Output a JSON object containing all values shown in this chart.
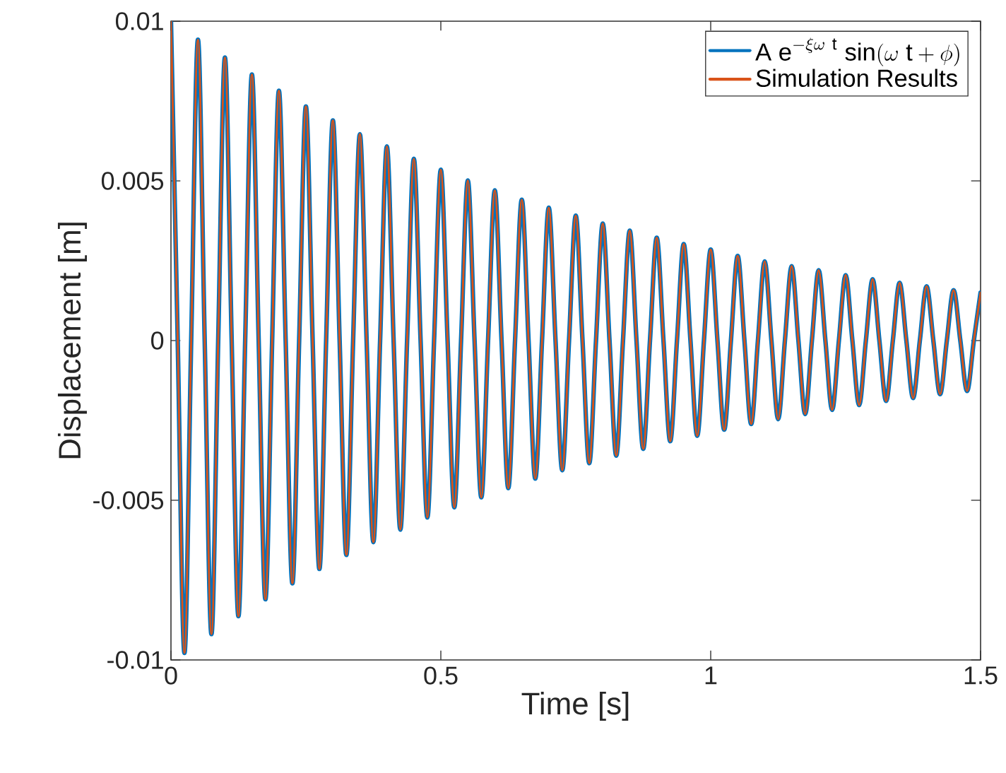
{
  "chart_data": {
    "type": "line",
    "xlabel": "Time [s]",
    "ylabel": "Displacement [m]",
    "xlim": [
      0,
      1.5
    ],
    "ylim": [
      -0.01,
      0.01
    ],
    "xticks": [
      0,
      0.5,
      1,
      1.5
    ],
    "yticks": [
      -0.01,
      -0.005,
      0,
      0.005,
      0.01
    ],
    "legend": "top right",
    "grid": false,
    "x": [
      0,
      0.0125,
      0.025,
      0.0375,
      0.05,
      0.0625,
      0.075,
      0.0875,
      0.1,
      0.1125,
      0.125,
      0.1375,
      0.15,
      0.1625,
      0.175,
      0.1875,
      0.2,
      0.2125,
      0.225,
      0.2375,
      0.25,
      0.2625,
      0.275,
      0.2875,
      0.3,
      0.3125,
      0.325,
      0.3375,
      0.35,
      0.3625,
      0.375,
      0.3875,
      0.4,
      0.4125,
      0.425,
      0.4375,
      0.45,
      0.4625,
      0.475,
      0.4875,
      0.5,
      0.5125,
      0.525,
      0.5375,
      0.55,
      0.5625,
      0.575,
      0.5875,
      0.6,
      0.6125,
      0.625,
      0.6375,
      0.65,
      0.6625,
      0.675,
      0.6875,
      0.7,
      0.7125,
      0.725,
      0.7375,
      0.75,
      0.7625,
      0.775,
      0.7875,
      0.8,
      0.8125,
      0.825,
      0.8375,
      0.85,
      0.8625,
      0.875,
      0.8875,
      0.9,
      0.9125,
      0.925,
      0.9375,
      0.95,
      0.9625,
      0.975,
      0.9875,
      1,
      1.0125,
      1.025,
      1.0375,
      1.05,
      1.0625,
      1.075,
      1.0875,
      1.1,
      1.1125,
      1.125,
      1.1375,
      1.15,
      1.1625,
      1.175,
      1.1875,
      1.2,
      1.2125,
      1.225,
      1.2375,
      1.25,
      1.2625,
      1.275,
      1.2875,
      1.3,
      1.3125,
      1.325,
      1.3375,
      1.35,
      1.3625,
      1.375,
      1.3875,
      1.4,
      1.4125,
      1.425,
      1.4375,
      1.45,
      1.4625,
      1.475,
      1.4875,
      1.5
    ],
    "series": [
      {
        "name": "\\mathrm{A\\ e}^{-\\xi\\omega\\ \\mathrm{t}}\\ \\mathrm{sin}(\\omega\\ \\mathrm{t} + \\phi)",
        "color": "#0072bd",
        "values": [
          0.01,
          0,
          -0.00978,
          0,
          0.00942,
          0,
          -0.00919,
          0,
          0.00886,
          0,
          -0.00863,
          0,
          0.00833,
          0,
          -0.0081,
          0,
          0.00782,
          0,
          -0.0076,
          0,
          0.00733,
          0,
          -0.00715,
          0,
          0.00689,
          0,
          -0.00671,
          0,
          0.00646,
          0,
          -0.00631,
          0,
          0.00608,
          0,
          -0.00592,
          0,
          0.00569,
          0,
          -0.00554,
          0,
          0.00535,
          0,
          -0.00522,
          0,
          0.00501,
          0,
          -0.00491,
          0,
          0.0047,
          0,
          -0.00462,
          0,
          0.00441,
          0,
          -0.00432,
          0,
          0.00416,
          0,
          -0.00406,
          0,
          0.00391,
          0,
          -0.00384,
          0,
          0.00366,
          0,
          -0.0036,
          0,
          0.00344,
          0,
          -0.00339,
          0,
          0.00322,
          0,
          -0.00315,
          0,
          0.00302,
          0,
          -0.00298,
          0,
          0.00285,
          0,
          -0.00279,
          0,
          0.00265,
          0,
          -0.00261,
          0,
          0.00248,
          0,
          -0.00246,
          0,
          0.00233,
          0,
          -0.0023,
          0,
          0.0022,
          0,
          -0.00217,
          0,
          0.00205,
          0,
          -0.00202,
          0,
          0.00192,
          0,
          -0.00189,
          0,
          0.00181,
          0,
          -0.0018,
          0,
          0.0017,
          0,
          -0.00168,
          0,
          0.00158,
          0,
          -0.00158,
          0,
          0.0015
        ]
      },
      {
        "name": "Simulation Results",
        "color": "#d95319",
        "values": [
          0.01,
          0,
          -0.00978,
          0,
          0.00942,
          0,
          -0.00919,
          0,
          0.00886,
          0,
          -0.00863,
          0,
          0.00833,
          0,
          -0.0081,
          0,
          0.00782,
          0,
          -0.0076,
          0,
          0.00733,
          0,
          -0.00715,
          0,
          0.00689,
          0,
          -0.00671,
          0,
          0.00646,
          0,
          -0.00631,
          0,
          0.00608,
          0,
          -0.00592,
          0,
          0.00569,
          0,
          -0.00554,
          0,
          0.00535,
          0,
          -0.00522,
          0,
          0.00501,
          0,
          -0.00491,
          0,
          0.0047,
          0,
          -0.00462,
          0,
          0.00441,
          0,
          -0.00432,
          0,
          0.00416,
          0,
          -0.00406,
          0,
          0.00391,
          0,
          -0.00384,
          0,
          0.00366,
          0,
          -0.0036,
          0,
          0.00344,
          0,
          -0.00339,
          0,
          0.00322,
          0,
          -0.00315,
          0,
          0.00302,
          0,
          -0.00298,
          0,
          0.00285,
          0,
          -0.00279,
          0,
          0.00265,
          0,
          -0.00261,
          0,
          0.00248,
          0,
          -0.00246,
          0,
          0.00233,
          0,
          -0.0023,
          0,
          0.0022,
          0,
          -0.00217,
          0,
          0.00205,
          0,
          -0.00202,
          0,
          0.00192,
          0,
          -0.00189,
          0,
          0.00181,
          0,
          -0.0018,
          0,
          0.0017,
          0,
          -0.00168,
          0,
          0.00158,
          0,
          -0.00158,
          0,
          0.0015
        ]
      }
    ]
  }
}
